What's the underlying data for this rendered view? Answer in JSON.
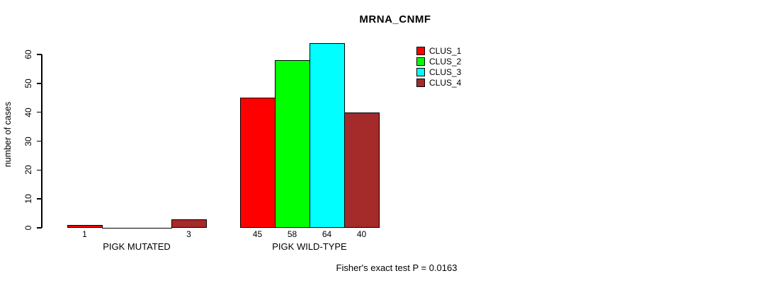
{
  "chart_data": {
    "type": "bar",
    "title": "MRNA_CNMF",
    "ylabel": "number of cases",
    "xlabel": "",
    "ylim": [
      0,
      65
    ],
    "y_ticks": [
      0,
      10,
      20,
      30,
      40,
      50,
      60
    ],
    "grid": false,
    "legend_position": "top-right",
    "categories": [
      "PIGK MUTATED",
      "PIGK WILD-TYPE"
    ],
    "series": [
      {
        "name": "CLUS_1",
        "color": "#ff0000",
        "values": [
          1,
          45
        ]
      },
      {
        "name": "CLUS_2",
        "color": "#00ff00",
        "values": [
          0,
          58
        ]
      },
      {
        "name": "CLUS_3",
        "color": "#00ffff",
        "values": [
          0,
          64
        ]
      },
      {
        "name": "CLUS_4",
        "color": "#a52a2a",
        "values": [
          3,
          40
        ]
      }
    ],
    "bar_value_labels": {
      "PIGK MUTATED": [
        1,
        0,
        0,
        3
      ],
      "PIGK WILD-TYPE": [
        45,
        58,
        64,
        40
      ]
    },
    "annotation": "Fisher's exact test P = 0.0163"
  }
}
